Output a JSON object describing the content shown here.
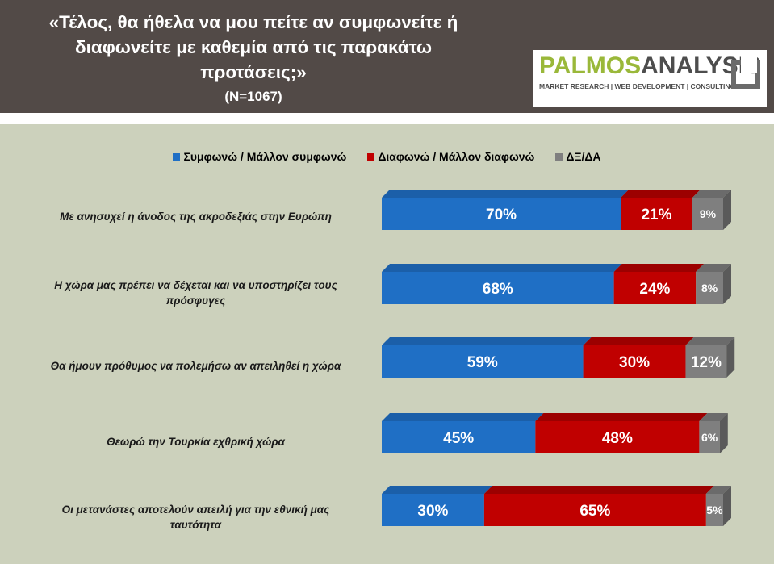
{
  "header": {
    "title": "«Τέλος, θα ήθελα να μου πείτε αν συμφωνείτε ή διαφωνείτε με καθεμία από τις παρακάτω προτάσεις;»",
    "title_lines": [
      "«Τέλος, θα ήθελα να μου πείτε αν συμφωνείτε ή",
      "διαφωνείτε με καθεμία από τις παρακάτω",
      "προτάσεις;»"
    ],
    "sample": "(N=1067)"
  },
  "logo": {
    "brand_palmos": "PALMOS",
    "brand_analysis": "ANALYSIS",
    "tagline": "MARKET RESEARCH | WEB DEVELOPMENT | CONSULTING"
  },
  "colors": {
    "agree": "#1f6fc5",
    "disagree": "#c00000",
    "dk": "#7f7f7f",
    "header_bg": "#524a47",
    "background": "#ccd1bc"
  },
  "chart_data": {
    "type": "bar",
    "orientation": "horizontal-stacked-100",
    "categories": [
      "Με ανησυχεί η άνοδος της ακροδεξιάς στην Ευρώπη",
      "Η χώρα μας πρέπει να δέχεται και να υποστηρίζει τους πρόσφυγες",
      "Θα ήμουν πρόθυμος να πολεμήσω αν απειληθεί η χώρα",
      "Θεωρώ την Τουρκία εχθρική χώρα",
      "Οι μετανάστες αποτελούν απειλή για την εθνική μας ταυτότητα"
    ],
    "category_lines": [
      [
        "Με ανησυχεί η άνοδος της ακροδεξιάς στην Ευρώπη"
      ],
      [
        "Η χώρα μας πρέπει να δέχεται και να υποστηρίζει τους",
        "πρόσφυγες"
      ],
      [
        "Θα ήμουν πρόθυμος να πολεμήσω αν απειληθεί η χώρα"
      ],
      [
        "Θεωρώ την Τουρκία εχθρική χώρα"
      ],
      [
        "Οι μετανάστες αποτελούν απειλή για την εθνική μας",
        "ταυτότητα"
      ]
    ],
    "series": [
      {
        "name": "Συμφωνώ / Μάλλον συμφωνώ",
        "color": "#1f6fc5",
        "values": [
          70,
          68,
          59,
          45,
          30
        ]
      },
      {
        "name": "Διαφωνώ / Μάλλον διαφωνώ",
        "color": "#c00000",
        "values": [
          21,
          24,
          30,
          48,
          65
        ]
      },
      {
        "name": "ΔΞ/ΔΑ",
        "color": "#7f7f7f",
        "values": [
          9,
          8,
          12,
          6,
          5
        ]
      }
    ],
    "data_labels": [
      [
        "70%",
        "21%",
        "9%"
      ],
      [
        "68%",
        "24%",
        "8%"
      ],
      [
        "59%",
        "30%",
        "12%"
      ],
      [
        "45%",
        "48%",
        "6%"
      ],
      [
        "30%",
        "65%",
        "5%"
      ]
    ],
    "legend_position": "top",
    "xlim": [
      0,
      100
    ]
  }
}
